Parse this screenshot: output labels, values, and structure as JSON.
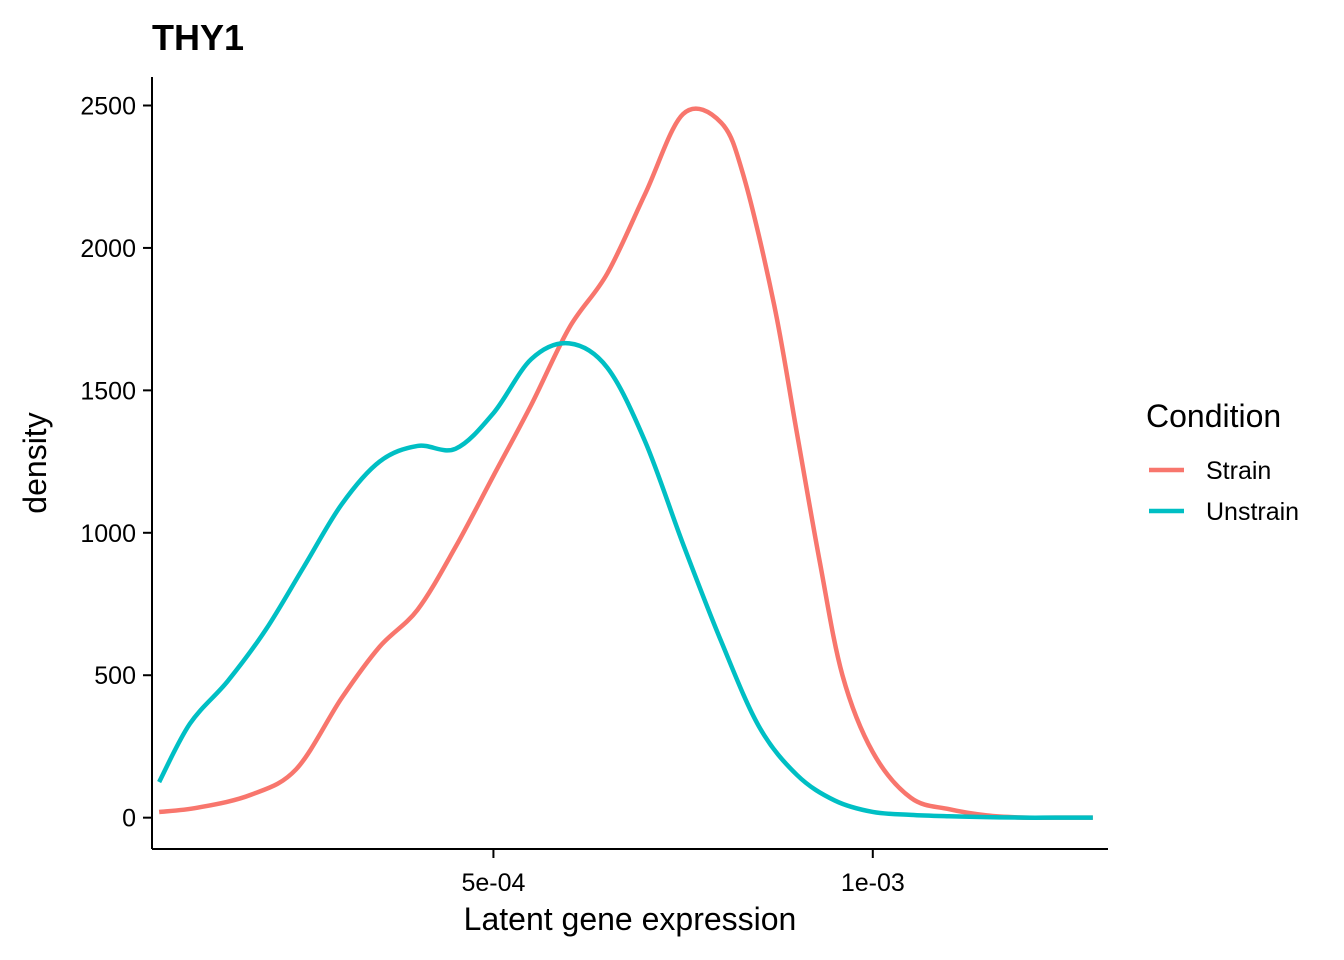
{
  "chart_data": {
    "type": "line",
    "title": "THY1",
    "xlabel": "Latent gene expression",
    "ylabel": "density",
    "xlim": [
      5e-05,
      0.00131
    ],
    "ylim": [
      -110,
      2600
    ],
    "x_ticks": [
      {
        "value": 0.0005,
        "label": "5e-04"
      },
      {
        "value": 0.001,
        "label": "1e-03"
      }
    ],
    "y_ticks": [
      {
        "value": 0,
        "label": "0"
      },
      {
        "value": 500,
        "label": "500"
      },
      {
        "value": 1000,
        "label": "1000"
      },
      {
        "value": 1500,
        "label": "1500"
      },
      {
        "value": 2000,
        "label": "2000"
      },
      {
        "value": 2500,
        "label": "2500"
      }
    ],
    "grid": false,
    "legend": {
      "title": "Condition",
      "position": "right"
    },
    "series": [
      {
        "name": "Strain",
        "color": "#F8766D",
        "x": [
          5.94e-05,
          0.00011,
          0.00018,
          0.00024,
          0.0003,
          0.00035,
          0.0004,
          0.00045,
          0.0005,
          0.00055,
          0.0006,
          0.00065,
          0.0007,
          0.00075,
          0.0008,
          0.00083,
          0.00087,
          0.0009,
          0.00093,
          0.00096,
          0.001,
          0.00105,
          0.0011,
          0.00115,
          0.0012,
          0.00124,
          0.00129
        ],
        "y": [
          20,
          35,
          80,
          170,
          420,
          600,
          730,
          950,
          1200,
          1450,
          1720,
          1910,
          2190,
          2470,
          2440,
          2250,
          1800,
          1350,
          900,
          500,
          230,
          70,
          30,
          8,
          0,
          0,
          0
        ]
      },
      {
        "name": "Unstrain",
        "color": "#00BFC4",
        "x": [
          5.94e-05,
          0.0001,
          0.00015,
          0.0002,
          0.00025,
          0.0003,
          0.00035,
          0.0004,
          0.00045,
          0.0005,
          0.00055,
          0.0006,
          0.00065,
          0.0007,
          0.00075,
          0.0008,
          0.00085,
          0.0009,
          0.00095,
          0.001,
          0.00105,
          0.0011,
          0.00115,
          0.0012,
          0.00124,
          0.00129
        ],
        "y": [
          125,
          330,
          480,
          660,
          880,
          1100,
          1250,
          1305,
          1295,
          1420,
          1610,
          1665,
          1580,
          1320,
          960,
          620,
          320,
          150,
          60,
          20,
          10,
          5,
          2,
          0,
          0,
          0
        ]
      }
    ]
  }
}
